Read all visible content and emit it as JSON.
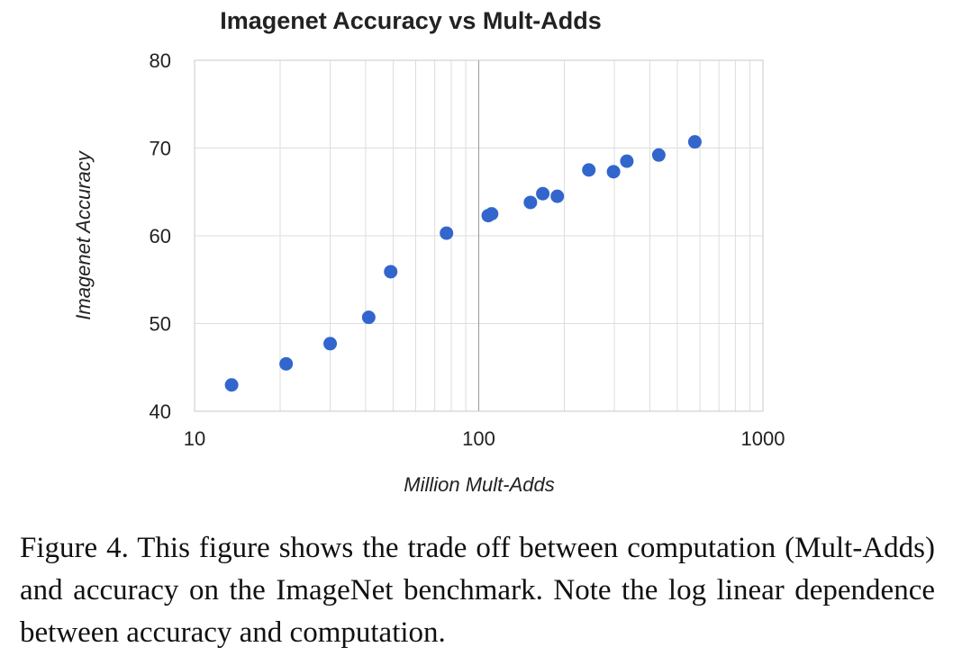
{
  "chart_data": {
    "type": "scatter",
    "title": "Imagenet Accuracy vs Mult-Adds",
    "xlabel": "Million Mult-Adds",
    "ylabel": "Imagenet Accuracy",
    "x_scale": "log",
    "xlim": [
      10,
      1000
    ],
    "ylim": [
      40,
      80
    ],
    "x_ticks": [
      "10",
      "100",
      "1000"
    ],
    "y_ticks": [
      "80",
      "70",
      "60",
      "50",
      "40"
    ],
    "grid": true,
    "legend": "none",
    "marker_color": "#3366cc",
    "points": [
      {
        "x": 13.5,
        "y": 43.0
      },
      {
        "x": 21,
        "y": 45.4
      },
      {
        "x": 30,
        "y": 47.7
      },
      {
        "x": 41,
        "y": 50.7
      },
      {
        "x": 49,
        "y": 55.9
      },
      {
        "x": 77,
        "y": 60.3
      },
      {
        "x": 108,
        "y": 62.3
      },
      {
        "x": 111,
        "y": 62.5
      },
      {
        "x": 152,
        "y": 63.8
      },
      {
        "x": 168,
        "y": 64.8
      },
      {
        "x": 189,
        "y": 64.5
      },
      {
        "x": 244,
        "y": 67.5
      },
      {
        "x": 298,
        "y": 67.3
      },
      {
        "x": 332,
        "y": 68.5
      },
      {
        "x": 430,
        "y": 69.2
      },
      {
        "x": 576,
        "y": 70.7
      }
    ]
  },
  "caption": "Figure 4. This figure shows the trade off between computation (Mult-Adds) and accuracy on the ImageNet benchmark. Note the log linear dependence between accuracy and computation."
}
